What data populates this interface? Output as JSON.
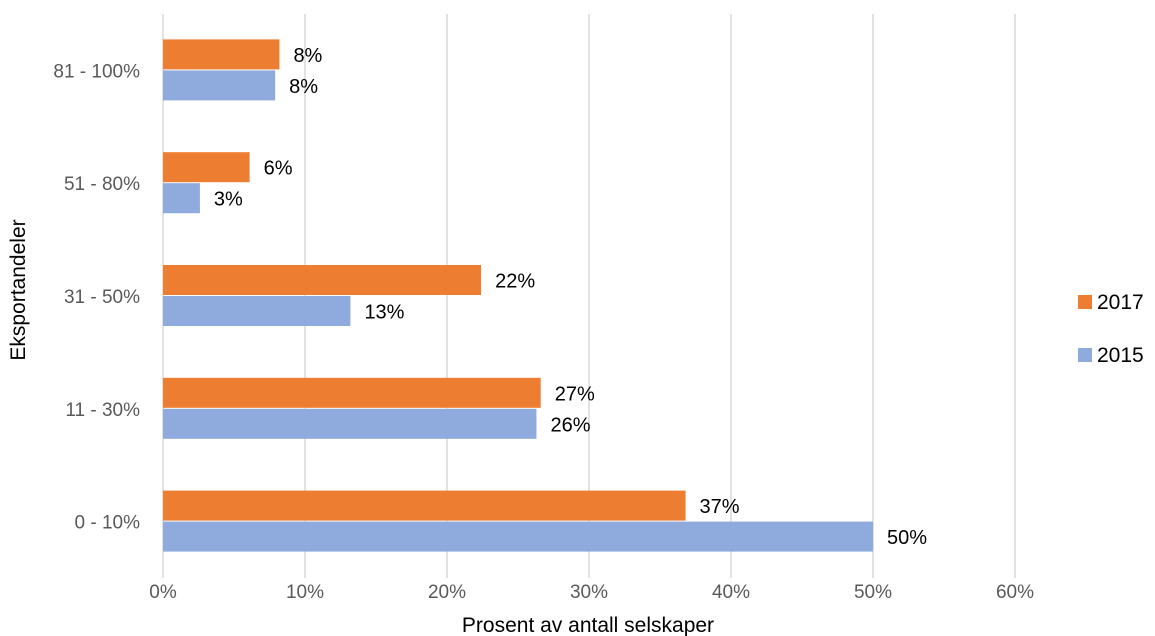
{
  "chart_data": {
    "type": "bar",
    "orientation": "horizontal",
    "categories": [
      "81 - 100%",
      "51 - 80%",
      "31 - 50%",
      "11 - 30%",
      "0 - 10%"
    ],
    "series": [
      {
        "name": "2017",
        "color": "#ED7D31",
        "values": [
          8.2,
          6.1,
          22.4,
          26.6,
          36.8
        ],
        "labels": [
          "8%",
          "6%",
          "22%",
          "27%",
          "37%"
        ]
      },
      {
        "name": "2015",
        "color": "#8FAADC",
        "values": [
          7.9,
          2.6,
          13.2,
          26.3,
          50.0
        ],
        "labels": [
          "8%",
          "3%",
          "13%",
          "26%",
          "50%"
        ]
      }
    ],
    "xlim": [
      0,
      60
    ],
    "xticks": [
      0,
      10,
      20,
      30,
      40,
      50,
      60
    ],
    "xtick_labels": [
      "0%",
      "10%",
      "20%",
      "30%",
      "40%",
      "50%",
      "60%"
    ],
    "xlabel": "Prosent av antall selskaper",
    "ylabel": "Eksportandeler",
    "legend": {
      "position": "right",
      "entries": [
        "2017",
        "2015"
      ]
    },
    "grid": "vertical"
  }
}
